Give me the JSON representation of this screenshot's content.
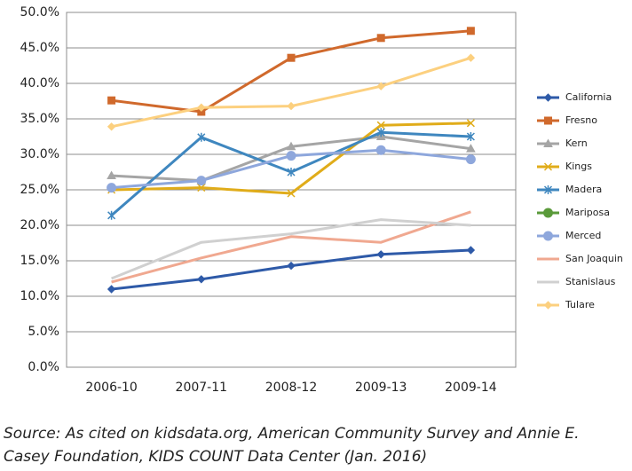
{
  "chart_data": {
    "type": "line",
    "categories": [
      "2006-10",
      "2007-11",
      "2008-12",
      "2009-13",
      "2009-14"
    ],
    "ylim": [
      0,
      50
    ],
    "yticks": [
      {
        "value": 0,
        "label": "0.0%"
      },
      {
        "value": 5,
        "label": "5.0%"
      },
      {
        "value": 10,
        "label": "10.0%"
      },
      {
        "value": 15,
        "label": "15.0%"
      },
      {
        "value": 20,
        "label": "20.0%"
      },
      {
        "value": 25,
        "label": "25.0%"
      },
      {
        "value": 30,
        "label": "30.0%"
      },
      {
        "value": 35,
        "label": "35.0%"
      },
      {
        "value": 40,
        "label": "40.0%"
      },
      {
        "value": 45,
        "label": "45.0%"
      },
      {
        "value": 50,
        "label": "50.0%"
      }
    ],
    "grid": true,
    "legend": "right",
    "series": [
      {
        "name": "California",
        "color": "#2e5aa8",
        "marker": "diamond",
        "values": [
          11.0,
          12.4,
          14.3,
          15.9,
          16.5
        ]
      },
      {
        "name": "Fresno",
        "color": "#d0692c",
        "marker": "square",
        "values": [
          37.6,
          36.0,
          43.6,
          46.4,
          47.4
        ]
      },
      {
        "name": "Kern",
        "color": "#a5a5a5",
        "marker": "triangle",
        "values": [
          27.0,
          26.3,
          31.1,
          32.5,
          30.8
        ]
      },
      {
        "name": "Kings",
        "color": "#e0ac1a",
        "marker": "x",
        "values": [
          25.0,
          25.3,
          24.5,
          34.1,
          34.4
        ]
      },
      {
        "name": "Madera",
        "color": "#3f87bf",
        "marker": "star",
        "values": [
          21.4,
          32.4,
          27.5,
          33.1,
          32.5
        ]
      },
      {
        "name": "Mariposa",
        "color": "#5a9a3a",
        "marker": "circle",
        "values": [
          null,
          null,
          null,
          null,
          null
        ]
      },
      {
        "name": "Merced",
        "color": "#8ea7dc",
        "marker": "circle",
        "values": [
          25.3,
          26.3,
          29.8,
          30.6,
          29.3
        ]
      },
      {
        "name": "San Joaquin",
        "color": "#f0a890",
        "marker": "none",
        "values": [
          12.0,
          15.4,
          18.4,
          17.6,
          21.9
        ]
      },
      {
        "name": "Stanislaus",
        "color": "#d0d0d0",
        "marker": "none",
        "values": [
          12.5,
          17.6,
          18.8,
          20.8,
          20.0
        ]
      },
      {
        "name": "Tulare",
        "color": "#fcd07f",
        "marker": "diamond",
        "values": [
          33.9,
          36.6,
          36.8,
          39.6,
          43.6
        ]
      }
    ],
    "source": "Source: As cited on kidsdata.org, American Community Survey and Annie E. Casey Foundation, KIDS COUNT Data Center (Jan. 2016)"
  }
}
